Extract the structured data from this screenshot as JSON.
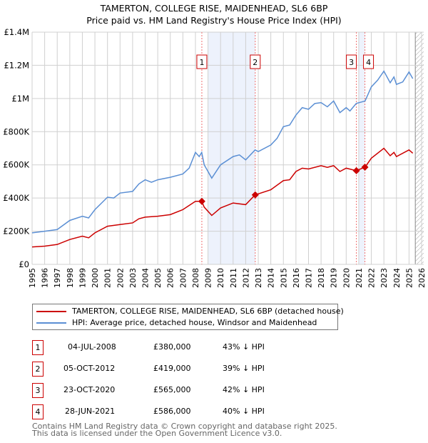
{
  "chart_data": {
    "type": "line",
    "title": "TAMERTON, COLLEGE RISE, MAIDENHEAD, SL6 6BP",
    "subtitle": "Price paid vs. HM Land Registry's House Price Index (HPI)",
    "xlim": [
      1995,
      2026
    ],
    "ylim": [
      0,
      1400000
    ],
    "yticks": [
      {
        "v": 0,
        "label": "£0"
      },
      {
        "v": 200000,
        "label": "£200K"
      },
      {
        "v": 400000,
        "label": "£400K"
      },
      {
        "v": 600000,
        "label": "£600K"
      },
      {
        "v": 800000,
        "label": "£800K"
      },
      {
        "v": 1000000,
        "label": "£1M"
      },
      {
        "v": 1200000,
        "label": "£1.2M"
      },
      {
        "v": 1400000,
        "label": "£1.4M"
      }
    ],
    "xticks": [
      "1995",
      "1996",
      "1997",
      "1998",
      "1999",
      "2000",
      "2001",
      "2002",
      "2003",
      "2004",
      "2005",
      "2006",
      "2007",
      "2008",
      "2009",
      "2010",
      "2011",
      "2012",
      "2013",
      "2014",
      "2015",
      "2016",
      "2017",
      "2018",
      "2019",
      "2020",
      "2021",
      "2022",
      "2023",
      "2024",
      "2025",
      "2026"
    ],
    "series": [
      {
        "name": "TAMERTON, COLLEGE RISE, MAIDENHEAD, SL6 6BP (detached house)",
        "color": "#cc0000",
        "points": [
          [
            1995,
            105
          ],
          [
            1996,
            110
          ],
          [
            1997,
            120
          ],
          [
            1998,
            150
          ],
          [
            1999,
            170
          ],
          [
            1999.5,
            160
          ],
          [
            2000,
            190
          ],
          [
            2001,
            230
          ],
          [
            2002,
            240
          ],
          [
            2003,
            250
          ],
          [
            2003.5,
            275
          ],
          [
            2004,
            285
          ],
          [
            2005,
            290
          ],
          [
            2006,
            300
          ],
          [
            2007,
            330
          ],
          [
            2008,
            380
          ],
          [
            2008.5,
            380
          ],
          [
            2008.7,
            345
          ],
          [
            2009.3,
            295
          ],
          [
            2010,
            340
          ],
          [
            2011,
            370
          ],
          [
            2012,
            360
          ],
          [
            2012.75,
            419
          ],
          [
            2014,
            450
          ],
          [
            2015,
            505
          ],
          [
            2015.5,
            510
          ],
          [
            2016,
            560
          ],
          [
            2016.5,
            580
          ],
          [
            2017,
            575
          ],
          [
            2018,
            595
          ],
          [
            2018.5,
            585
          ],
          [
            2019,
            595
          ],
          [
            2019.5,
            560
          ],
          [
            2020,
            580
          ],
          [
            2020.8,
            565
          ],
          [
            2021.5,
            586
          ],
          [
            2022,
            640
          ],
          [
            2023,
            700
          ],
          [
            2023.5,
            655
          ],
          [
            2023.8,
            675
          ],
          [
            2024,
            650
          ],
          [
            2025,
            690
          ],
          [
            2025.3,
            670
          ]
        ]
      },
      {
        "name": "HPI: Average price, detached house, Windsor and Maidenhead",
        "color": "#5b8fd4",
        "points": [
          [
            1995,
            190
          ],
          [
            1996,
            200
          ],
          [
            1997,
            210
          ],
          [
            1998,
            265
          ],
          [
            1999,
            290
          ],
          [
            1999.5,
            280
          ],
          [
            2000,
            330
          ],
          [
            2001,
            405
          ],
          [
            2001.5,
            400
          ],
          [
            2002,
            430
          ],
          [
            2003,
            440
          ],
          [
            2003.5,
            485
          ],
          [
            2004,
            510
          ],
          [
            2004.5,
            495
          ],
          [
            2005,
            510
          ],
          [
            2006,
            525
          ],
          [
            2007,
            545
          ],
          [
            2007.5,
            580
          ],
          [
            2008,
            675
          ],
          [
            2008.3,
            650
          ],
          [
            2008.5,
            675
          ],
          [
            2008.7,
            600
          ],
          [
            2009.3,
            520
          ],
          [
            2010,
            600
          ],
          [
            2011,
            650
          ],
          [
            2011.5,
            660
          ],
          [
            2012,
            630
          ],
          [
            2012.75,
            690
          ],
          [
            2013,
            680
          ],
          [
            2014,
            720
          ],
          [
            2014.5,
            760
          ],
          [
            2015,
            830
          ],
          [
            2015.5,
            840
          ],
          [
            2016,
            900
          ],
          [
            2016.5,
            945
          ],
          [
            2017,
            935
          ],
          [
            2017.5,
            970
          ],
          [
            2018,
            975
          ],
          [
            2018.5,
            950
          ],
          [
            2019,
            985
          ],
          [
            2019.5,
            915
          ],
          [
            2020,
            945
          ],
          [
            2020.3,
            925
          ],
          [
            2020.8,
            970
          ],
          [
            2021.5,
            985
          ],
          [
            2022,
            1070
          ],
          [
            2022.5,
            1110
          ],
          [
            2023,
            1165
          ],
          [
            2023.5,
            1095
          ],
          [
            2023.8,
            1130
          ],
          [
            2024,
            1085
          ],
          [
            2024.5,
            1100
          ],
          [
            2025,
            1160
          ],
          [
            2025.3,
            1120
          ]
        ]
      }
    ],
    "sales": [
      {
        "n": "1",
        "date": "04-JUL-2008",
        "x": 2008.51,
        "price": "£380,000",
        "value": 380,
        "hpi": "43% ↓ HPI"
      },
      {
        "n": "2",
        "date": "05-OCT-2012",
        "x": 2012.76,
        "price": "£419,000",
        "value": 419,
        "hpi": "39% ↓ HPI"
      },
      {
        "n": "3",
        "date": "23-OCT-2020",
        "x": 2020.81,
        "price": "£565,000",
        "value": 565,
        "hpi": "42% ↓ HPI"
      },
      {
        "n": "4",
        "date": "28-JUN-2021",
        "x": 2021.49,
        "price": "£586,000",
        "value": 586,
        "hpi": "40% ↓ HPI"
      }
    ],
    "shaded_ranges": [
      [
        2009.0,
        2012.76
      ],
      [
        2021.0,
        2021.49
      ]
    ],
    "forecast_start": 2025.5,
    "units": "thousands GBP"
  },
  "footer": [
    "Contains HM Land Registry data © Crown copyright and database right 2025.",
    "This data is licensed under the Open Government Licence v3.0."
  ]
}
